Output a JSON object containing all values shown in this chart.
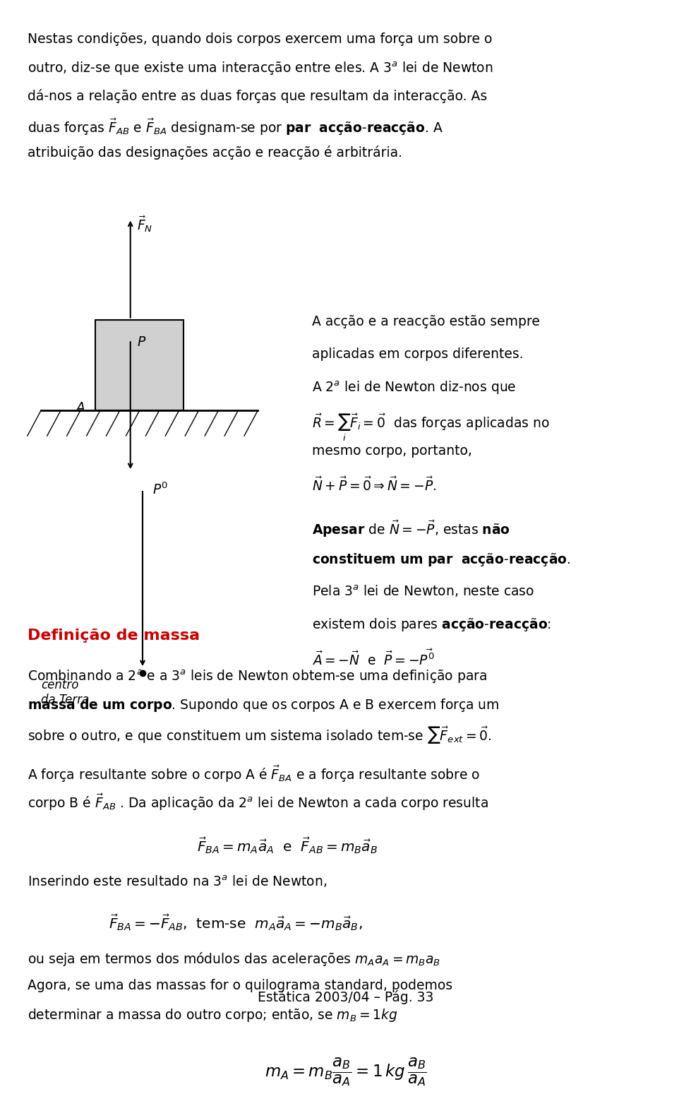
{
  "bg_color": "#ffffff",
  "text_color": "#000000",
  "red_color": "#cc0000",
  "fig_width": 9.6,
  "fig_height": 15.2,
  "body_font_size": 13.5,
  "formula_font_size": 14,
  "title_font_size": 16,
  "paragraph1": "Nestas condições, quando dois corpos exercem uma força um sobre o outro, diz-se que existe uma interacção entre eles. A 3ª lei de Newton dá-nos a relação entre as duas forças que resultam da interacção. As duas forças $\\vec{F}_{AB}$ e $\\vec{F}_{BA}$ designam-se por \\textbf{par  acção-reacção}. A atribuição das designações acção e reacção é arbitrária.",
  "right_text1": "A acção e a reacção estão sempre aplicadas em corpos diferentes.",
  "right_text2": "A 2ª lei de Newton diz-nos que $\\vec{R} = \\sum_i \\vec{F}_i = \\vec{0}$ das forças aplicadas no mesmo corpo, portanto, $\\vec{N} + \\vec{P} = \\vec{0} \\Rightarrow \\vec{N} = -\\vec{P}$.",
  "right_text3": "\\textbf{Apesar} de $\\vec{N} = -\\vec{P}$, estas \\textbf{não constituem um par  acção-reacção}. Pela 3ª lei de Newton, neste caso existem dois pares \\textbf{acção-reacção}: $\\vec{A} = -\\vec{N}$ e $\\vec{P} = -\\vec{P'}$",
  "section_title": "Definição de massa",
  "body_text2": "Combinando a 2ª e a 3ª leis de Newton obtem-se uma definição para \\textbf{massa de um corpo}. Supondo que os corpos A e B exercem força um sobre o outro, e que constituem um sistema isolado tem-se $\\sum \\vec{F}_{ext} = \\vec{0}$.",
  "body_text3": "A força resultante sobre o corpo A é $\\vec{F}_{BA}$ e a força resultante sobre o corpo B é $\\vec{F}_{AB}$. Da aplicação da 2ª lei de Newton a cada corpo resulta",
  "formula1": "$\\vec{F}_{BA} = m_A \\vec{a}_A$ e $\\vec{F}_{AB} = m_B \\vec{a}_B$",
  "body_text4": "Inserindo este resultado na 3ª lei de Newton,",
  "formula2": "$\\vec{F}_{BA} = -\\vec{F}_{AB}$,  tem-se  $m_A \\vec{a}_A = -m_B \\vec{a}_B$,",
  "body_text5": "ou seja em termos dos módulos das acelerações $m_A a_A = m_B a_B$ Agora, se uma das massas for o quilograma standard, podemos determinar a massa do outro corpo; então, se $m_B = 1kg$",
  "formula3": "$m_A = m_B \\dfrac{a_B}{a_A} = 1 kg \\dfrac{a_B}{a_A}$",
  "footer": "Estática 2003/04 – Pág. 33"
}
